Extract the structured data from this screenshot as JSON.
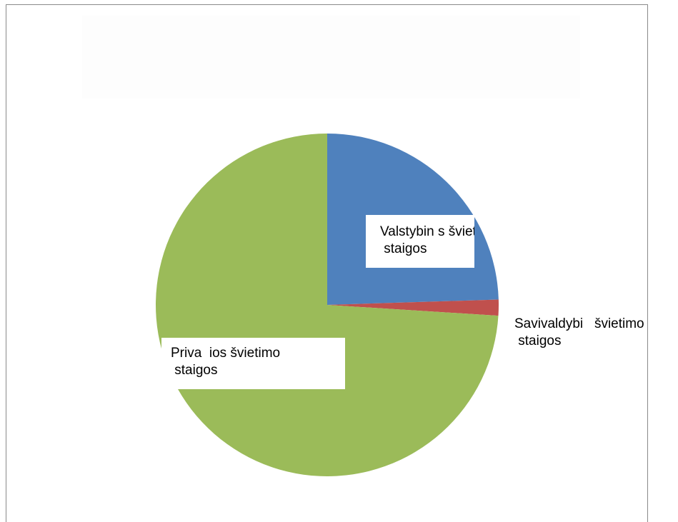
{
  "header_fragment": "                 ",
  "chart_data": {
    "type": "pie",
    "title": "",
    "slices": [
      {
        "label": "Valstybin s švietimo\n staigos",
        "value": 24.5,
        "color": "#4f81bd"
      },
      {
        "label": "Savivaldybi   švietimo\n staigos",
        "value": 1.5,
        "color": "#c0504d"
      },
      {
        "label": "Priva  ios švietimo\n staigos",
        "value": 74.0,
        "color": "#9bbb59"
      }
    ],
    "start_angle_deg": 0,
    "legend": "none",
    "data_labels": "category"
  }
}
